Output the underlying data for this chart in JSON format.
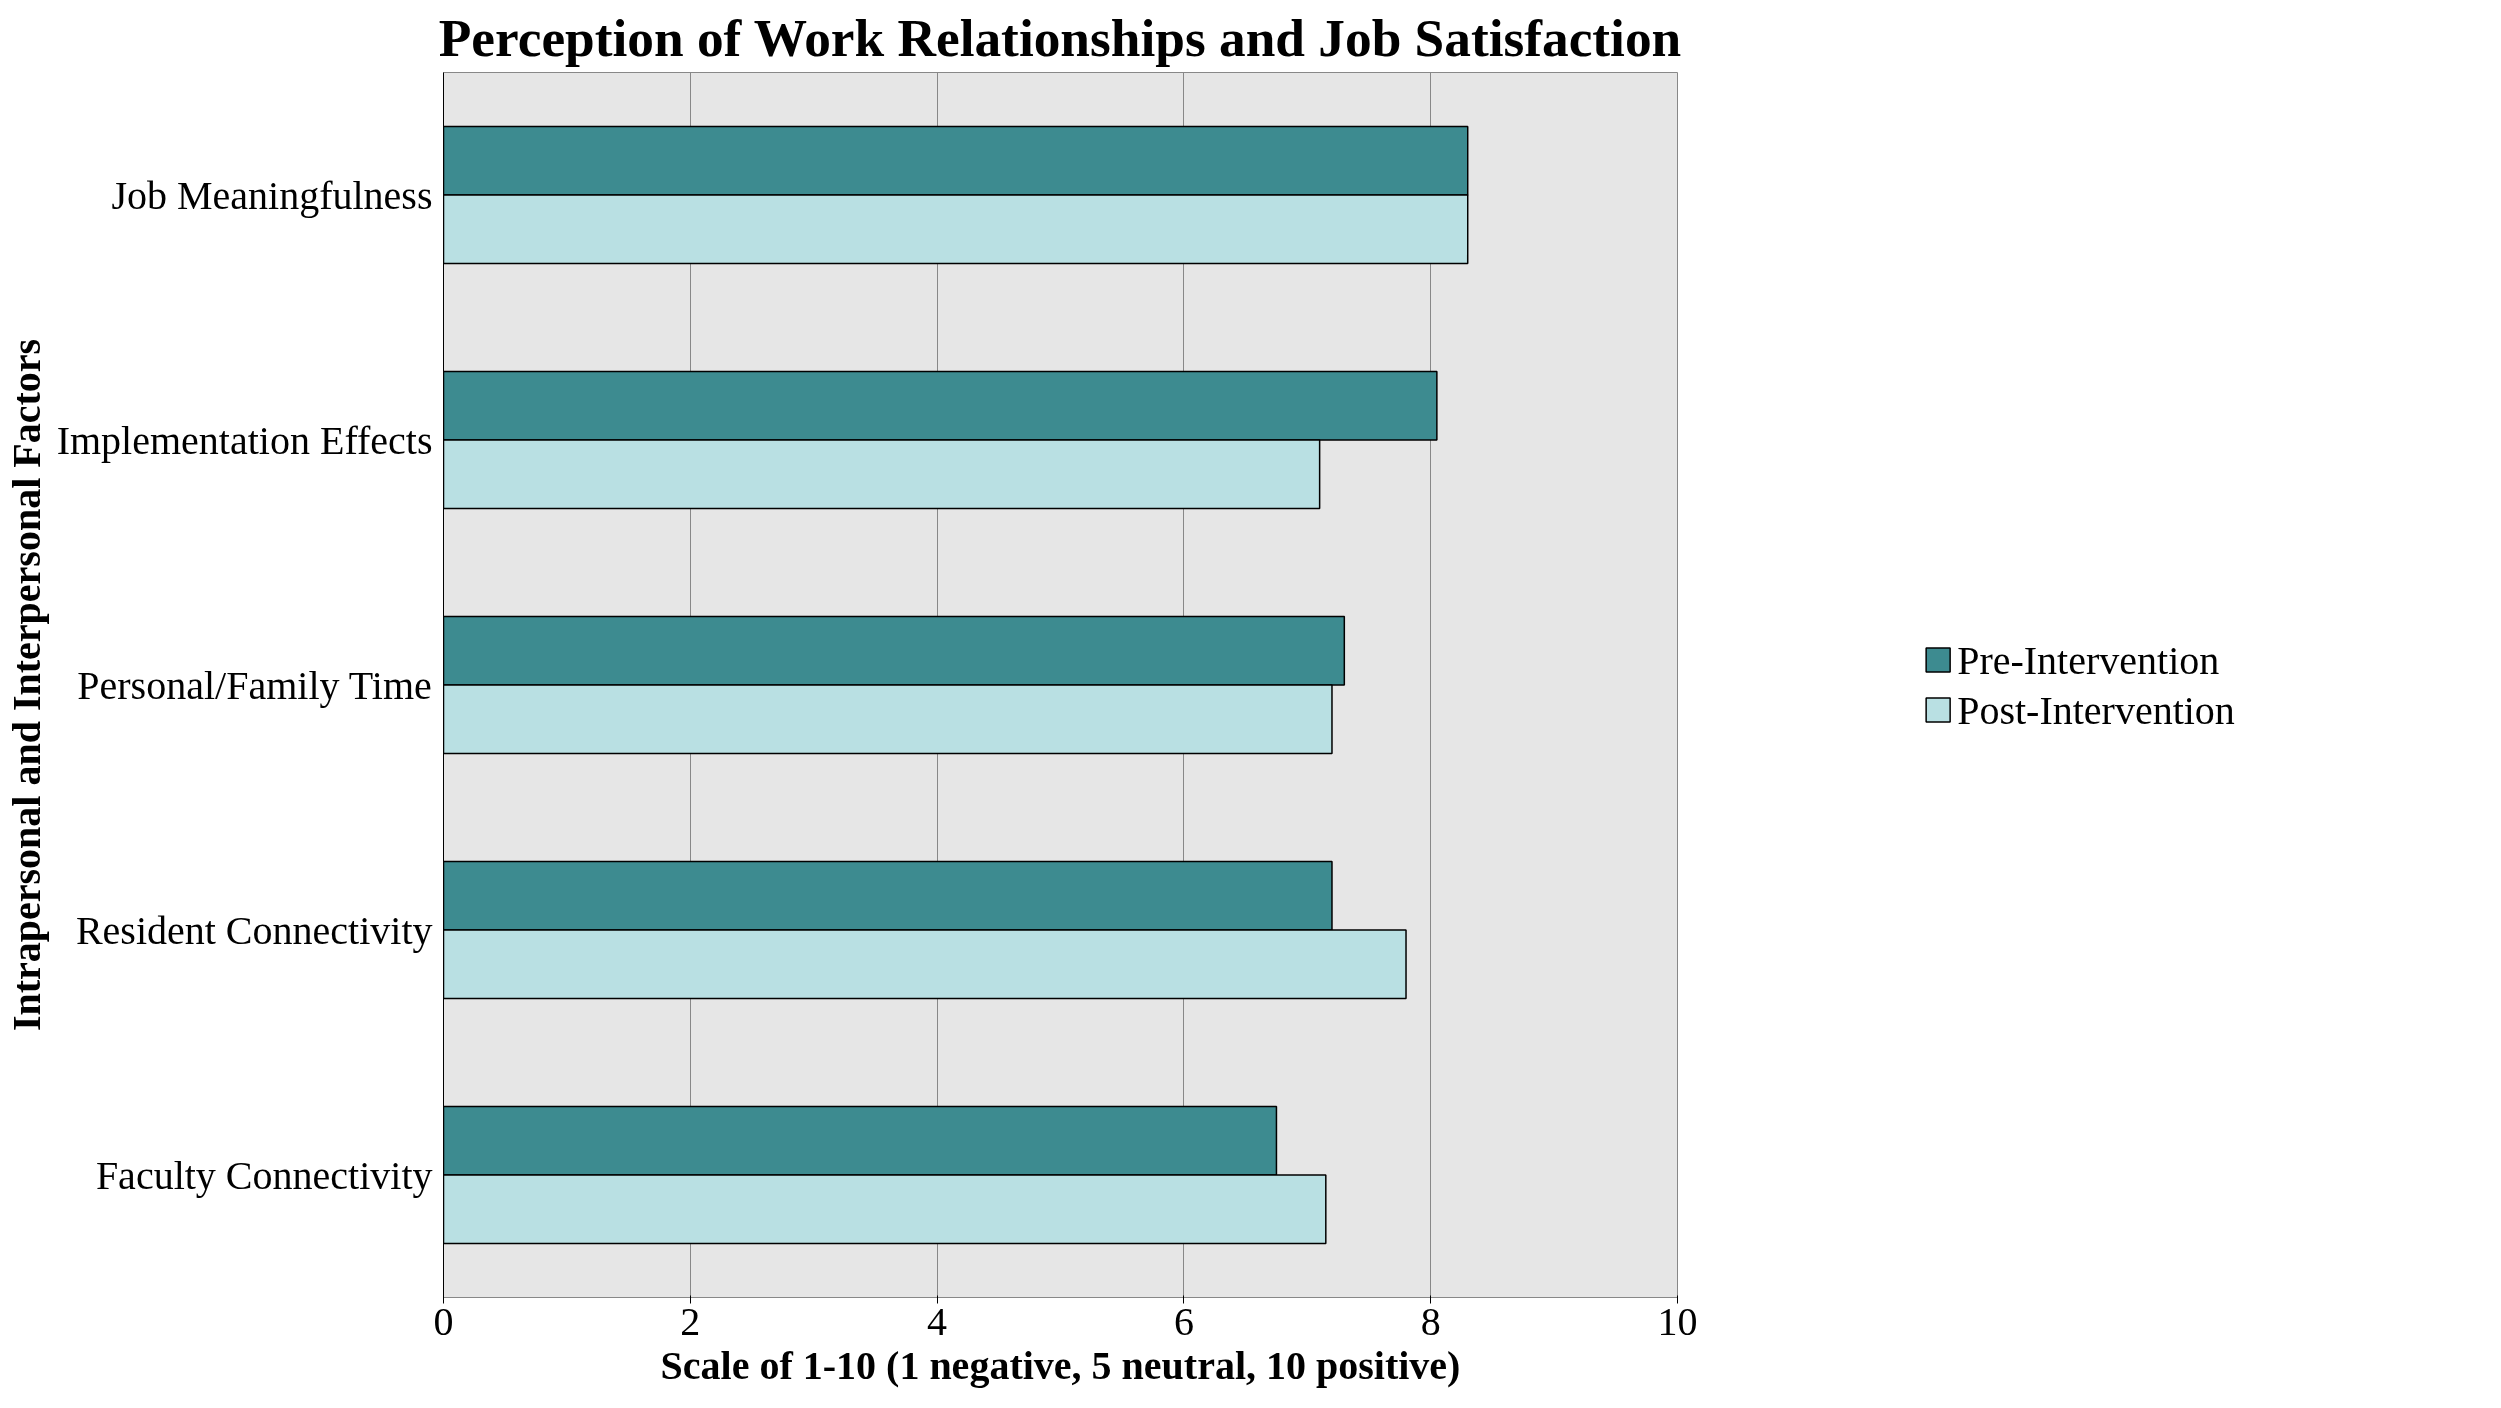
{
  "chart_data": {
    "type": "bar",
    "orientation": "horizontal",
    "title": "Perception of Work Relationships and Job Satisfaction",
    "xlabel": "Scale of 1-10 (1 negative, 5 neutral, 10 positive)",
    "ylabel": "Intrapersonal and Interpersonal Factors",
    "categories": [
      "Job Meaningfulness",
      "Implementation Effects",
      "Personal/Family Time",
      "Resident Connectivity",
      "Faculty Connectivity"
    ],
    "series": [
      {
        "name": "Pre-Intervention",
        "color": "#3d8b90",
        "values": [
          8.3,
          8.05,
          7.3,
          7.2,
          6.75
        ]
      },
      {
        "name": "Post-Intervention",
        "color": "#b9e0e3",
        "values": [
          8.3,
          7.1,
          7.2,
          7.8,
          7.15
        ]
      }
    ],
    "xlim": [
      0,
      10
    ],
    "xticks": [
      0,
      2,
      4,
      6,
      8,
      10
    ],
    "grid": "x",
    "legend": "right"
  }
}
